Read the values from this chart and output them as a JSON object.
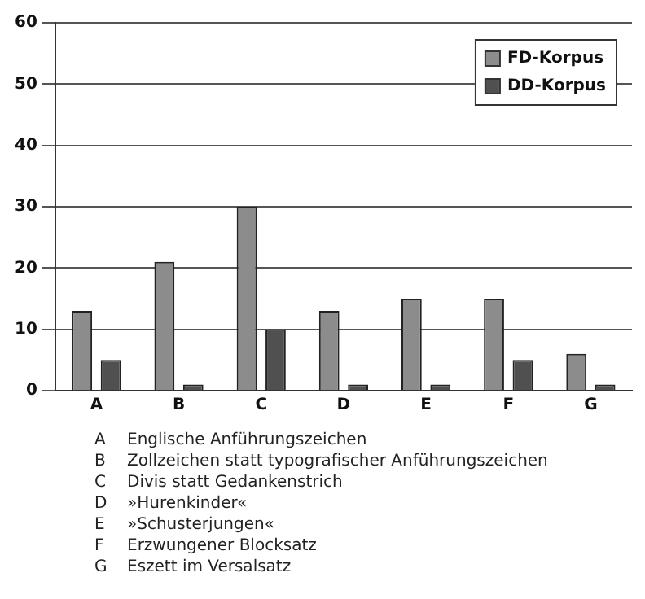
{
  "chart_data": {
    "type": "bar",
    "categories": [
      "A",
      "B",
      "C",
      "D",
      "E",
      "F",
      "G"
    ],
    "series": [
      {
        "name": "FD-Korpus",
        "color": "#8c8c8c",
        "values": [
          13,
          21,
          30,
          13,
          15,
          15,
          6
        ]
      },
      {
        "name": "DD-Korpus",
        "color": "#505050",
        "values": [
          5,
          1,
          10,
          1,
          1,
          5,
          1
        ]
      }
    ],
    "ylim": [
      0,
      60
    ],
    "yticks": [
      0,
      10,
      20,
      30,
      40,
      50,
      60
    ],
    "grid": "y",
    "legend": "top right",
    "annotations": [
      "A\tEnglische Anführungszeichen",
      "B\tZollzeichen statt typografischer Anführungszeichen",
      "C\tDivis statt Gedankenstrich",
      "D\t»Hurenkinder«",
      "E\t»Schusterjungen«",
      "F\tErzwungener Blocksatz",
      "G\tEszett im Versalsatz"
    ]
  }
}
